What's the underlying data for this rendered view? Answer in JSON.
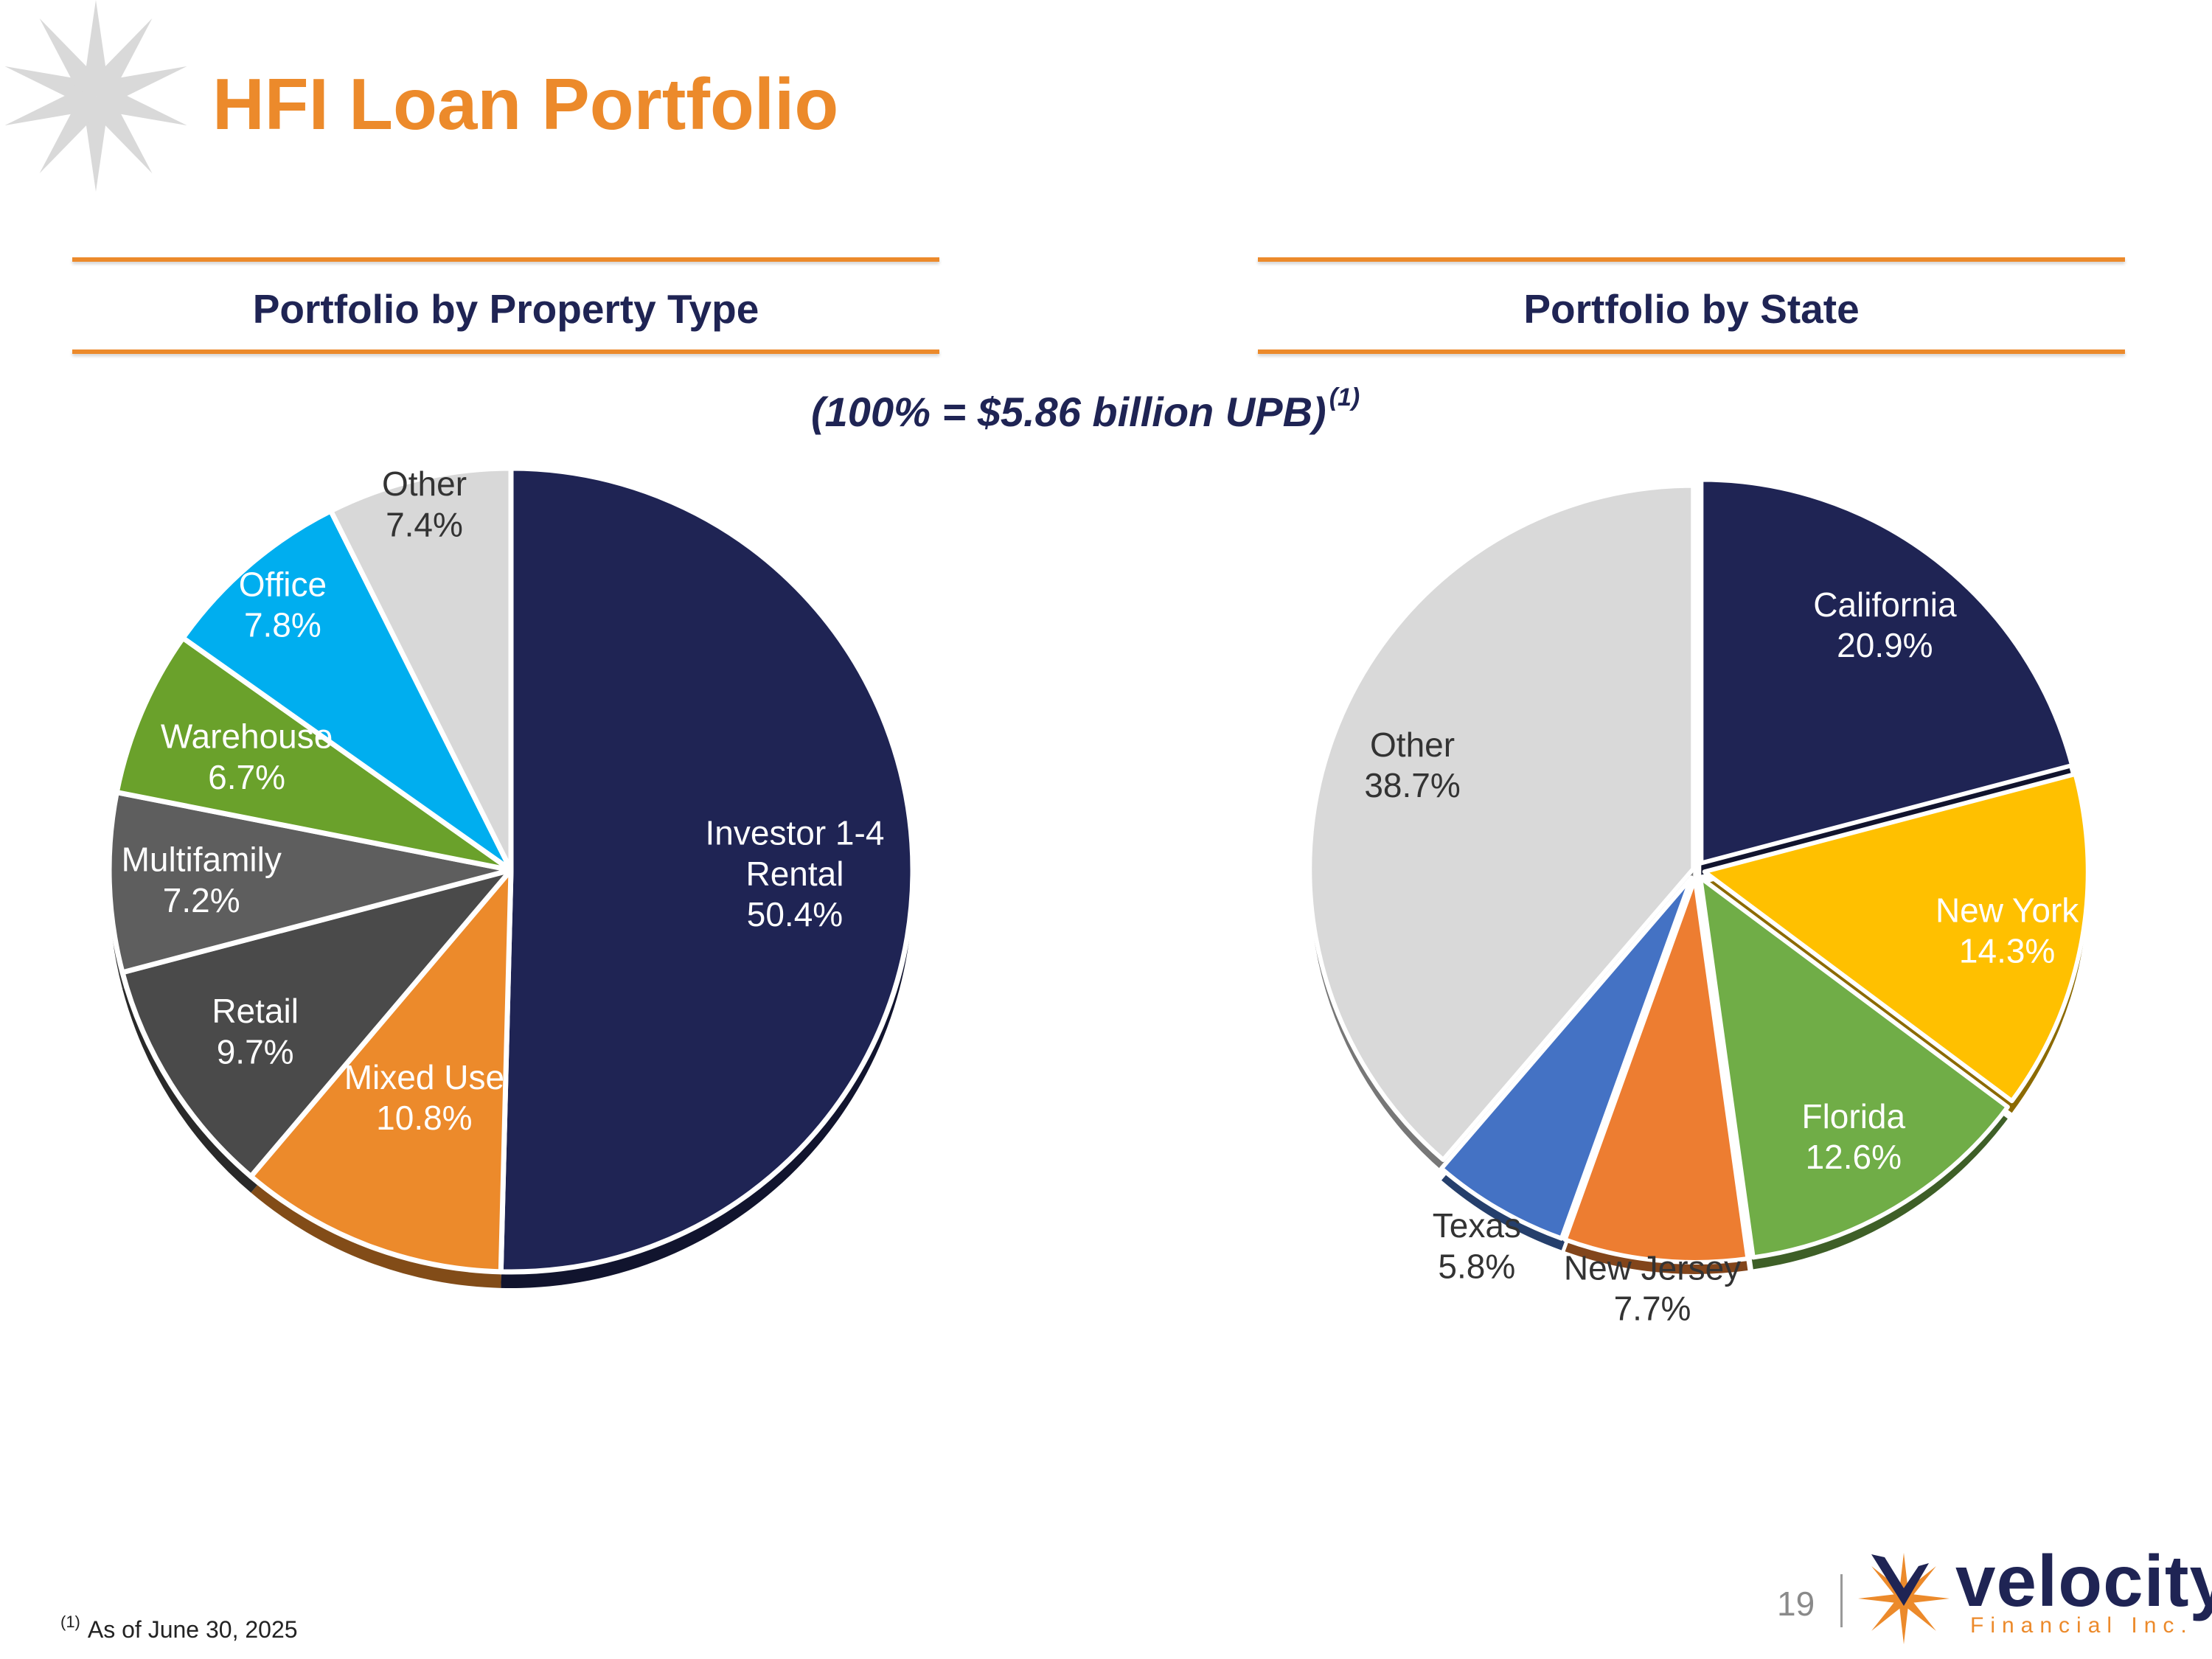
{
  "page": {
    "title": "HFI Loan Portfolio",
    "subtitle": "(100% = $5.86 billion UPB)",
    "subtitle_note": "(1)",
    "footnote_mark": "(1)",
    "footnote_text": "As of June 30, 2025",
    "page_number": "19",
    "brand": {
      "name": "velocity",
      "tagline": "Financial Inc."
    }
  },
  "colors": {
    "accent": "#ec8a2b",
    "navy": "#1f2454"
  },
  "chart_data": [
    {
      "type": "pie",
      "title": "Portfolio by Property Type",
      "categories": [
        "Investor 1-4 Rental",
        "Mixed Use",
        "Retail",
        "Multifamily",
        "Warehouse",
        "Office",
        "Other"
      ],
      "label_lines": [
        [
          "Investor 1-4",
          "Rental",
          "50.4%"
        ],
        [
          "Mixed Use",
          "10.8%"
        ],
        [
          "Retail",
          "9.7%"
        ],
        [
          "Multifamily",
          "7.2%"
        ],
        [
          "Warehouse",
          "6.7%"
        ],
        [
          "Office",
          "7.8%"
        ],
        [
          "Other",
          "7.4%"
        ]
      ],
      "values": [
        50.4,
        10.8,
        9.7,
        7.2,
        6.7,
        7.8,
        7.4
      ],
      "unit": "%",
      "colors": [
        "#1f2454",
        "#ec8a2b",
        "#4a4a4a",
        "#5e5e5e",
        "#6aa12b",
        "#00aeef",
        "#d8d8d8"
      ],
      "label_colors": [
        "#ffffff",
        "#ffffff",
        "#ffffff",
        "#ffffff",
        "#ffffff",
        "#ffffff",
        "#333333"
      ]
    },
    {
      "type": "pie",
      "title": "Portfolio by State",
      "categories": [
        "California",
        "New York",
        "Florida",
        "New Jersey",
        "Texas",
        "Other"
      ],
      "label_lines": [
        [
          "California",
          "20.9%"
        ],
        [
          "New York",
          "14.3%"
        ],
        [
          "Florida",
          "12.6%"
        ],
        [
          "New Jersey",
          "7.7%"
        ],
        [
          "Texas",
          "5.8%"
        ],
        [
          "Other",
          "38.7%"
        ]
      ],
      "values": [
        20.9,
        14.3,
        12.6,
        7.7,
        5.8,
        38.7
      ],
      "unit": "%",
      "colors": [
        "#1f2454",
        "#ffc000",
        "#70ad47",
        "#ed7d31",
        "#4472c4",
        "#d9d9d9"
      ],
      "label_colors": [
        "#ffffff",
        "#ffffff",
        "#ffffff",
        "#333333",
        "#333333",
        "#333333"
      ]
    }
  ]
}
